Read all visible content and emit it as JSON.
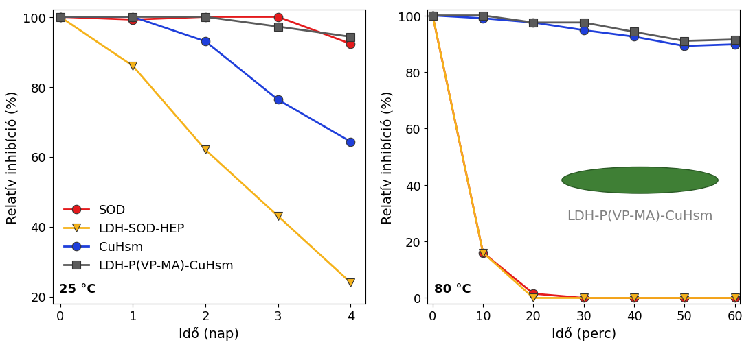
{
  "chart_data": [
    {
      "type": "line",
      "x_label": "Idő (nap)",
      "y_label": "Relatív inhibíció (%)",
      "annotations": [
        "25 °C"
      ],
      "x": [
        0,
        1,
        2,
        3,
        4
      ],
      "xlim": [
        -0.1,
        4.2
      ],
      "xticks": [
        0,
        1,
        2,
        3,
        4
      ],
      "ylim": [
        18,
        102
      ],
      "yticks": [
        20,
        40,
        60,
        80,
        100
      ],
      "legend": "lower left",
      "series": [
        {
          "name": "SOD",
          "color": "#e41a1c",
          "marker": "circle",
          "values": [
            100,
            99.2,
            100,
            100,
            92.3
          ]
        },
        {
          "name": "LDH-SOD-HEP",
          "color": "#f5b21a",
          "marker": "triangle_down",
          "values": [
            100,
            86,
            62,
            43,
            24
          ]
        },
        {
          "name": "CuHsm",
          "color": "#1f3fdb",
          "marker": "circle",
          "values": [
            100,
            100,
            93,
            76.3,
            64.3
          ]
        },
        {
          "name": "LDH-P(VP-MA)-CuHsm",
          "color": "#5a5a5a",
          "marker": "square",
          "values": [
            100,
            100,
            100,
            97.2,
            94.3
          ]
        }
      ]
    },
    {
      "type": "line",
      "x_label": "Idő (perc)",
      "y_label": "Relatív inhibíció (%)",
      "annotations": [
        "80 °C",
        "LDH-P(VP-MA)-CuHsm"
      ],
      "x": [
        0,
        10,
        20,
        30,
        40,
        50,
        60
      ],
      "xlim": [
        -1,
        61
      ],
      "xticks": [
        0,
        10,
        20,
        30,
        40,
        50,
        60
      ],
      "ylim": [
        -2,
        102
      ],
      "yticks": [
        0,
        20,
        40,
        60,
        80,
        100
      ],
      "series": [
        {
          "name": "SOD",
          "color": "#e41a1c",
          "marker": "circle",
          "values": [
            100,
            16,
            1.5,
            0,
            0,
            0,
            0
          ]
        },
        {
          "name": "LDH-SOD-HEP",
          "color": "#f5b21a",
          "marker": "triangle_down",
          "values": [
            100,
            16,
            0,
            0,
            0,
            0,
            0
          ]
        },
        {
          "name": "CuHsm",
          "color": "#1f3fdb",
          "marker": "circle",
          "values": [
            100,
            99,
            97.5,
            94.8,
            92.5,
            89.2,
            89.8
          ]
        },
        {
          "name": "LDH-P(VP-MA)-CuHsm",
          "color": "#5a5a5a",
          "marker": "square",
          "values": [
            100,
            100,
            97.5,
            97.5,
            94.2,
            91,
            91.5
          ]
        }
      ]
    }
  ]
}
